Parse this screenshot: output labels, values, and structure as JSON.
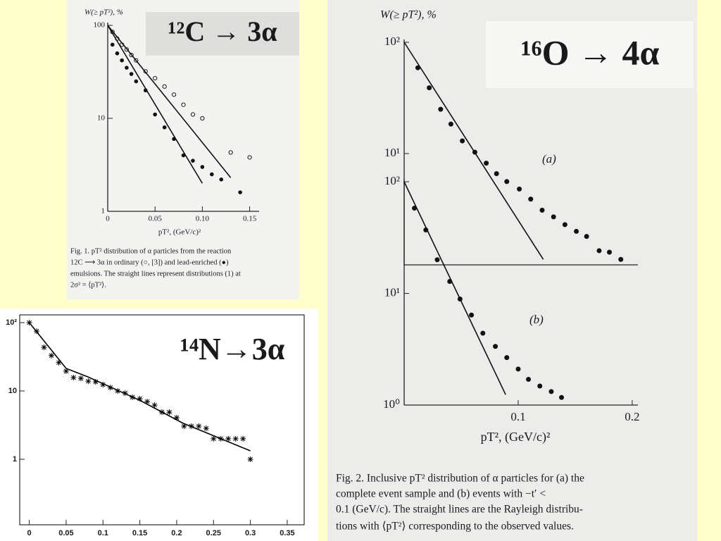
{
  "chart_data": [
    {
      "type": "scatter",
      "title": "¹²C → 3α",
      "ylabel": "W(≥ pT²), %",
      "xlabel": "pT², (GeV/c)²",
      "caption": [
        "Fig. 1. pT² distribution of α particles from the reaction",
        "12C ⟶ 3α in ordinary (○, [3]) and lead-enriched (●)",
        "emulsions. The straight lines represent distributions (1) at",
        "2σ² = ⟨pT²⟩."
      ],
      "log_y": true,
      "xlim": [
        0,
        0.16
      ],
      "ylim": [
        1,
        100
      ],
      "xticks": [
        0,
        0.05,
        {
          "value": 0.1,
          "label": "0.10"
        },
        0.15
      ],
      "yticks": [
        1,
        10,
        100
      ],
      "series": [
        {
          "marker": "open",
          "color": "#111111",
          "x": [
            0.005,
            0.01,
            0.015,
            0.02,
            0.025,
            0.03,
            0.04,
            0.05,
            0.06,
            0.07,
            0.08,
            0.09,
            0.1,
            0.13,
            0.15
          ],
          "values": [
            85,
            72,
            62,
            55,
            48,
            42,
            32,
            27,
            22,
            18,
            14,
            11,
            10,
            4.3,
            3.8
          ]
        },
        {
          "marker": "filled",
          "color": "#111111",
          "x": [
            0.005,
            0.01,
            0.015,
            0.02,
            0.025,
            0.03,
            0.04,
            0.05,
            0.06,
            0.07,
            0.08,
            0.09,
            0.1,
            0.11,
            0.12,
            0.14
          ],
          "values": [
            62,
            50,
            42,
            35,
            30,
            25,
            20,
            11,
            8,
            6,
            4,
            3.5,
            3,
            2.5,
            2.2,
            1.6
          ]
        },
        {
          "marker": "none",
          "line": true,
          "color": "#111111",
          "x": [
            0,
            0.1
          ],
          "values": [
            100,
            2.0
          ]
        },
        {
          "marker": "none",
          "line": true,
          "color": "#111111",
          "x": [
            0,
            0.13
          ],
          "values": [
            100,
            2.3
          ]
        }
      ]
    },
    {
      "type": "scatter",
      "title": "¹⁶O → 4α",
      "ylabel": "W(≥ pT²), %",
      "xlabel": "pT², (GeV/c)²",
      "annotation": "(a)",
      "caption": [
        "Fig. 2. Inclusive pT² distribution of α particles for (a) the",
        "complete event sample and (b) events with −t′ <",
        "0.1 (GeV/c). The straight lines are the Rayleigh distribu-",
        "tions with ⟨pT²⟩ corresponding to the observed values."
      ],
      "log_y": true,
      "xlim": [
        0,
        0.205
      ],
      "ylim": [
        1,
        100
      ],
      "yticks": [
        {
          "value": 10,
          "label": "10¹"
        },
        {
          "value": 100,
          "label": "10²"
        }
      ],
      "series": [
        {
          "marker": "filled",
          "color": "#111111",
          "x": [
            0.012,
            0.022,
            0.032,
            0.041,
            0.051,
            0.062,
            0.072,
            0.081,
            0.09,
            0.101,
            0.111,
            0.121,
            0.131,
            0.141,
            0.151,
            0.16,
            0.171,
            0.18,
            0.19
          ],
          "values": [
            59,
            39,
            25,
            18.4,
            13,
            10.3,
            8.2,
            6.6,
            5.6,
            4.8,
            3.9,
            3.1,
            2.7,
            2.3,
            2.0,
            1.8,
            1.34,
            1.3,
            1.12
          ]
        },
        {
          "marker": "none",
          "line": true,
          "color": "#111111",
          "x": [
            0,
            0.122
          ],
          "values": [
            100,
            1.12
          ]
        }
      ]
    },
    {
      "type": "scatter",
      "annotation": "(b)",
      "log_y": true,
      "xlim": [
        0,
        0.205
      ],
      "ylim": [
        1,
        100
      ],
      "xticks": [
        0.1,
        0.2
      ],
      "yticks": [
        {
          "value": 1,
          "label": "10⁰"
        },
        {
          "value": 10,
          "label": "10¹"
        },
        {
          "value": 100,
          "label": "10²"
        }
      ],
      "series": [
        {
          "marker": "filled",
          "color": "#111111",
          "x": [
            0.009,
            0.019,
            0.029,
            0.04,
            0.049,
            0.059,
            0.069,
            0.08,
            0.09,
            0.1,
            0.109,
            0.119,
            0.129,
            0.138
          ],
          "values": [
            58,
            37,
            20,
            12.8,
            8.9,
            6.4,
            4.4,
            3.35,
            2.66,
            2.1,
            1.7,
            1.48,
            1.32,
            1.17
          ]
        },
        {
          "marker": "none",
          "line": true,
          "color": "#111111",
          "x": [
            0,
            0.089
          ],
          "values": [
            100,
            1.24
          ]
        }
      ]
    },
    {
      "type": "scatter",
      "title": "¹⁴N→3α",
      "log_y": true,
      "xlim": [
        -0.013,
        0.373
      ],
      "ylim": [
        0.11,
        130
      ],
      "xticks": [
        0,
        0.05,
        0.1,
        0.15,
        0.2,
        0.25,
        0.3,
        0.35
      ],
      "yticks": [
        1,
        10,
        {
          "value": 100,
          "label": "10²"
        }
      ],
      "series": [
        {
          "marker": "star",
          "color": "#000000",
          "x": [
            0,
            0.01,
            0.02,
            0.03,
            0.04,
            0.05,
            0.06,
            0.07,
            0.08,
            0.09,
            0.1,
            0.11,
            0.12,
            0.13,
            0.14,
            0.15,
            0.16,
            0.17,
            0.18,
            0.19,
            0.2,
            0.21,
            0.22,
            0.23,
            0.24,
            0.25,
            0.26,
            0.27,
            0.28,
            0.29,
            0.3
          ],
          "values": [
            100,
            75,
            43.5,
            33,
            26,
            19.5,
            15.7,
            15.3,
            13.9,
            13.6,
            12.4,
            11.2,
            10,
            9.3,
            8.1,
            7.7,
            7.0,
            6.2,
            4.9,
            4.9,
            4.06,
            3.05,
            3.05,
            3.05,
            2.84,
            2.0,
            2.0,
            2.0,
            2.0,
            2.0,
            1.0
          ]
        },
        {
          "marker": "none",
          "line": true,
          "color": "#000000",
          "x": [
            0,
            0.05,
            0.08,
            0.15,
            0.208,
            0.3
          ],
          "values": [
            100,
            21.4,
            16,
            7.3,
            3.4,
            1.33
          ]
        }
      ]
    }
  ]
}
